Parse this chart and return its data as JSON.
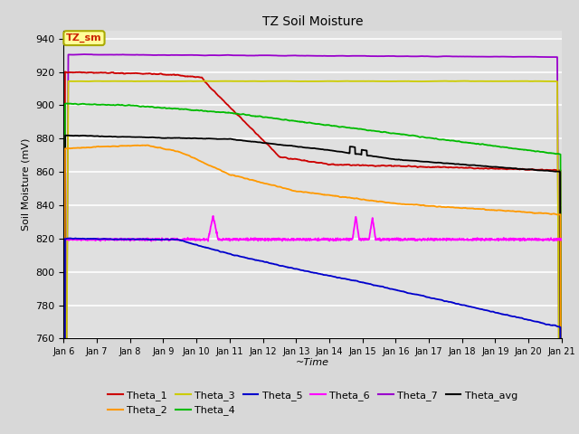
{
  "title": "TZ Soil Moisture",
  "xlabel": "~Time",
  "ylabel": "Soil Moisture (mV)",
  "ylim": [
    760,
    945
  ],
  "background_color": "#d8d8d8",
  "plot_bg_color": "#e0e0e0",
  "grid_color": "#ffffff",
  "legend_label": "TZ_sm",
  "legend_box_color": "#ffff99",
  "legend_box_border": "#aaaa00",
  "series_colors": {
    "Theta_1": "#cc0000",
    "Theta_2": "#ff9900",
    "Theta_3": "#cccc00",
    "Theta_4": "#00bb00",
    "Theta_5": "#0000cc",
    "Theta_6": "#ff00ff",
    "Theta_7": "#9900cc",
    "Theta_avg": "#000000"
  },
  "tick_labels": [
    "Jan 6",
    "Jan 7",
    "Jan 8",
    "Jan 9",
    "Jan 10",
    "Jan 11",
    "Jan 12",
    "Jan 13",
    "Jan 14",
    "Jan 15",
    "Jan 16",
    "Jan 17",
    "Jan 18",
    "Jan 19",
    "Jan 20",
    "Jan 21"
  ]
}
